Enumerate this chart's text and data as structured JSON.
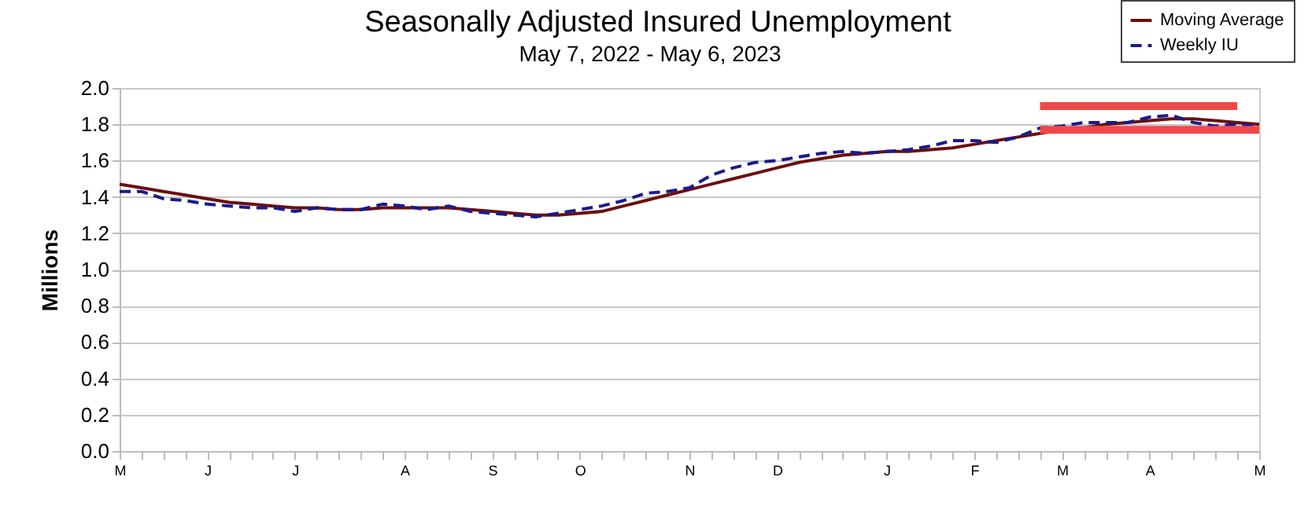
{
  "chart_data": {
    "type": "line",
    "title": "Seasonally Adjusted Insured Unemployment",
    "subtitle": "May 7, 2022 - May 6, 2023",
    "ylabel": "Millions",
    "categories": [
      "M",
      null,
      null,
      null,
      "J",
      null,
      null,
      null,
      "J",
      null,
      null,
      null,
      null,
      "A",
      null,
      null,
      null,
      "S",
      null,
      null,
      null,
      "O",
      null,
      null,
      null,
      null,
      "N",
      null,
      null,
      null,
      "D",
      null,
      null,
      null,
      null,
      "J",
      null,
      null,
      null,
      "F",
      null,
      null,
      null,
      "M",
      null,
      null,
      null,
      "A",
      null,
      null,
      null,
      null,
      "M"
    ],
    "series": [
      {
        "name": "Moving Average",
        "color": "#6b0f0f",
        "line_style": "solid",
        "values": [
          1.47,
          1.45,
          1.43,
          1.41,
          1.39,
          1.37,
          1.36,
          1.35,
          1.34,
          1.34,
          1.33,
          1.33,
          1.34,
          1.34,
          1.34,
          1.34,
          1.33,
          1.32,
          1.31,
          1.3,
          1.3,
          1.31,
          1.32,
          1.35,
          1.38,
          1.41,
          1.44,
          1.47,
          1.5,
          1.53,
          1.56,
          1.59,
          1.61,
          1.63,
          1.64,
          1.65,
          1.65,
          1.66,
          1.67,
          1.69,
          1.71,
          1.73,
          1.75,
          1.77,
          1.78,
          1.8,
          1.81,
          1.82,
          1.83,
          1.83,
          1.82,
          1.81,
          1.8
        ]
      },
      {
        "name": "Weekly IU",
        "color": "#1a1a8c",
        "line_style": "dashed",
        "values": [
          1.43,
          1.43,
          1.39,
          1.38,
          1.36,
          1.35,
          1.34,
          1.34,
          1.32,
          1.34,
          1.33,
          1.33,
          1.36,
          1.35,
          1.33,
          1.35,
          1.32,
          1.31,
          1.3,
          1.29,
          1.31,
          1.33,
          1.35,
          1.38,
          1.42,
          1.43,
          1.45,
          1.52,
          1.56,
          1.59,
          1.6,
          1.62,
          1.64,
          1.65,
          1.64,
          1.65,
          1.66,
          1.68,
          1.71,
          1.71,
          1.7,
          1.73,
          1.78,
          1.79,
          1.81,
          1.81,
          1.81,
          1.84,
          1.85,
          1.81,
          1.79,
          1.8,
          1.79
        ]
      },
      {
        "color": "#f04848",
        "line_style": "solid",
        "values": [
          null,
          null,
          null,
          null,
          null,
          null,
          null,
          null,
          null,
          null,
          null,
          null,
          null,
          null,
          null,
          null,
          null,
          null,
          null,
          null,
          null,
          null,
          null,
          null,
          null,
          null,
          null,
          null,
          null,
          null,
          null,
          null,
          null,
          null,
          null,
          null,
          null,
          null,
          null,
          null,
          null,
          null,
          1.9,
          1.9,
          1.9,
          1.9,
          1.9,
          1.9,
          1.9,
          1.9,
          1.9,
          1.9,
          null
        ]
      },
      {
        "color": "#f04848",
        "line_style": "solid",
        "values": [
          null,
          null,
          null,
          null,
          null,
          null,
          null,
          null,
          null,
          null,
          null,
          null,
          null,
          null,
          null,
          null,
          null,
          null,
          null,
          null,
          null,
          null,
          null,
          null,
          null,
          null,
          null,
          null,
          null,
          null,
          null,
          null,
          null,
          null,
          null,
          null,
          null,
          null,
          null,
          null,
          null,
          null,
          1.77,
          1.77,
          1.77,
          1.77,
          1.77,
          1.77,
          1.77,
          1.77,
          1.77,
          1.77,
          1.77
        ]
      }
    ],
    "ylim": [
      0,
      2
    ],
    "yticks": [
      {
        "value": 0,
        "label": "0.0"
      },
      {
        "value": 0.2,
        "label": "0.2"
      },
      {
        "value": 0.4,
        "label": "0.4"
      },
      {
        "value": 0.6,
        "label": "0.6"
      },
      {
        "value": 0.8,
        "label": "0.8"
      },
      {
        "value": 1,
        "label": "1.0"
      },
      {
        "value": 1.2,
        "label": "1.2"
      },
      {
        "value": 1.4,
        "label": "1.4"
      },
      {
        "value": 1.6,
        "label": "1.6"
      },
      {
        "value": 1.8,
        "label": "1.8"
      },
      {
        "value": 2,
        "label": "2.0"
      }
    ],
    "grid": "y",
    "legend": "top right"
  }
}
